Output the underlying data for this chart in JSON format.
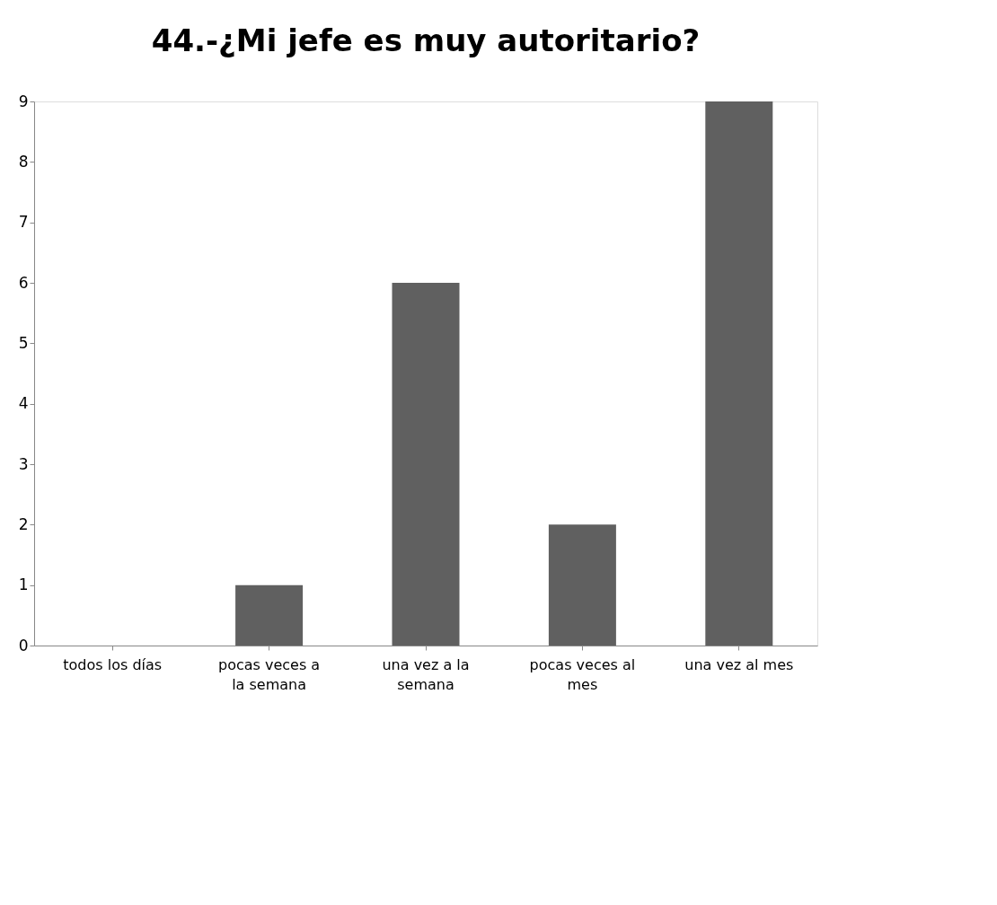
{
  "chart_data": {
    "type": "bar",
    "title": "44.-¿Mi jefe es muy autoritario?",
    "categories": [
      "todos los días",
      "pocas veces a la semana",
      "una vez a la semana",
      "pocas veces al mes",
      "una vez al mes"
    ],
    "values": [
      0,
      1,
      6,
      2,
      9
    ],
    "color": "#606060",
    "ylim": [
      0,
      9
    ],
    "yticks": [
      0,
      1,
      2,
      3,
      4,
      5,
      6,
      7,
      8,
      9
    ],
    "grid": false
  }
}
